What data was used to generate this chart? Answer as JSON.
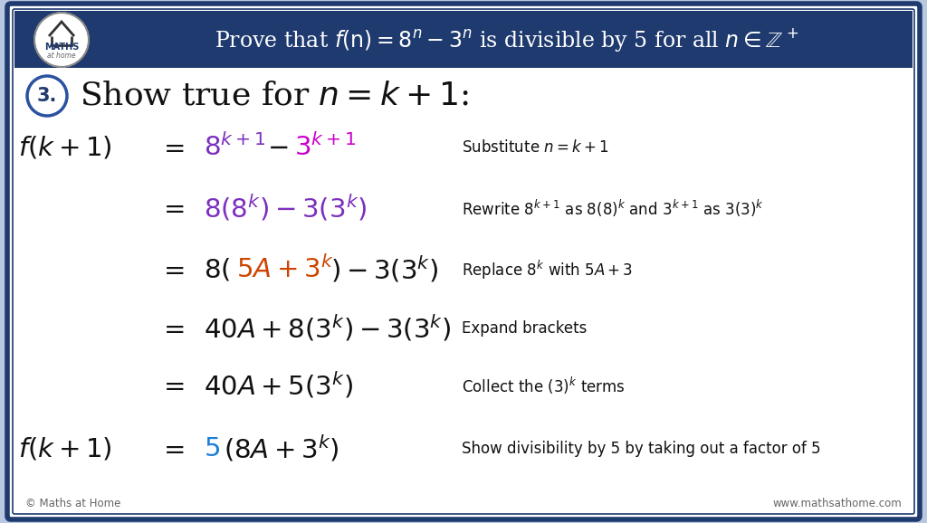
{
  "bg_outer": "#b8c8e0",
  "bg_inner": "#ffffff",
  "border_dark": "#1e3a6e",
  "border_mid": "#2a52a0",
  "purple": "#7b2fbe",
  "magenta": "#cc00cc",
  "orange": "#cc4400",
  "blue_5": "#1a7fd4",
  "dark": "#111111",
  "gray_text": "#666666",
  "title_text": "Prove that $f(\\mathrm{n}) = 8^n - 3^n$ is divisible by 5 for all $n \\in \\mathbb{Z}^+$",
  "footer_left": "© Maths at Home",
  "footer_right": "www.mathsathome.com",
  "fig_width": 10.24,
  "fig_height": 5.78,
  "dpi": 100
}
